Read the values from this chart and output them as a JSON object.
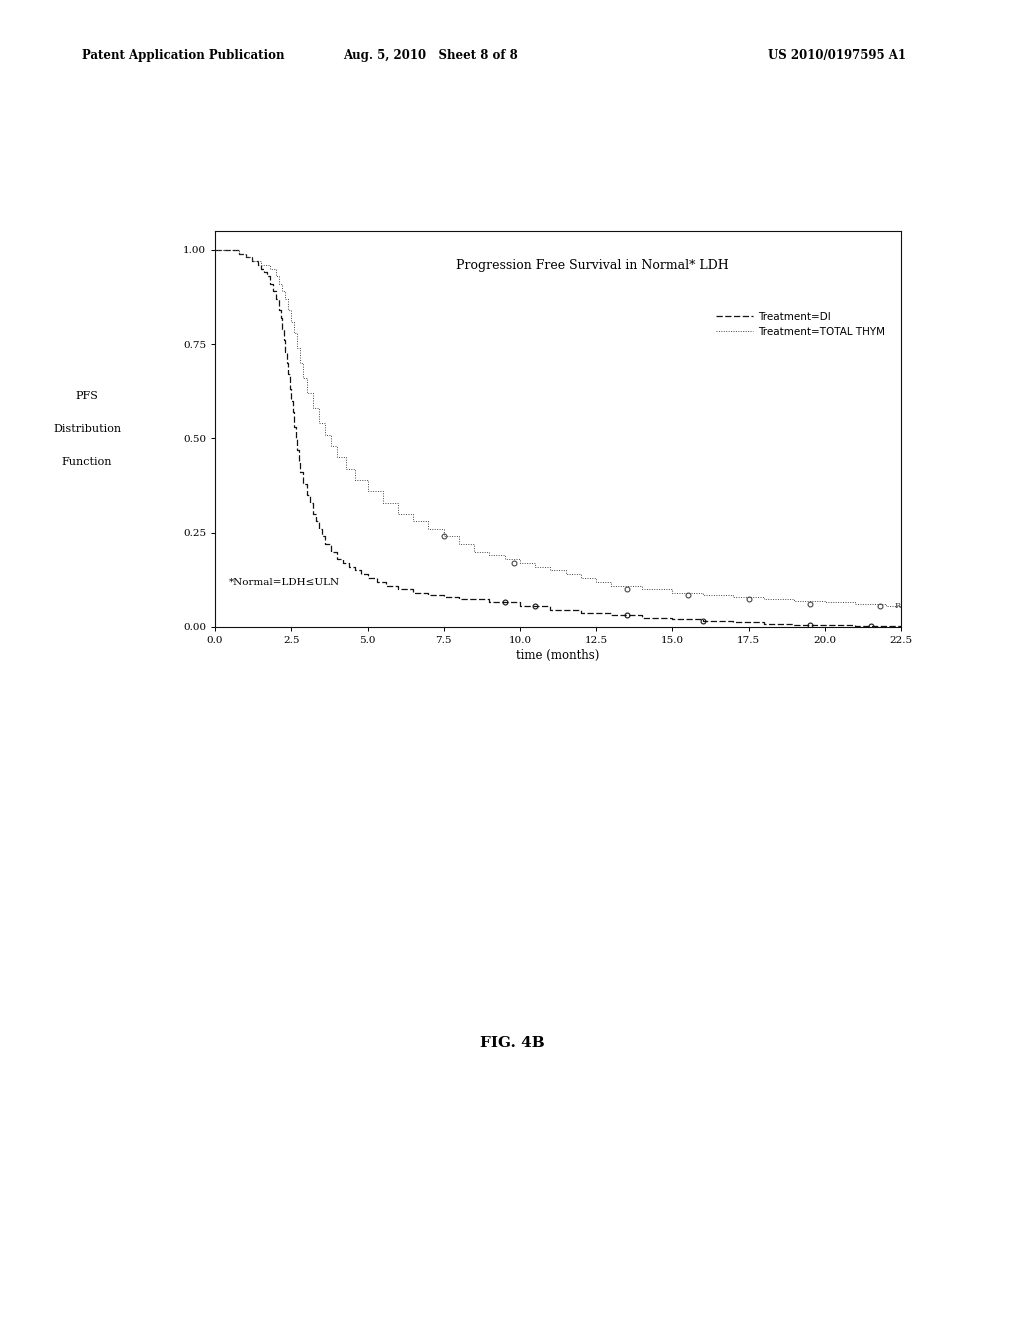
{
  "title": "Progression Free Survival in Normal* LDH",
  "xlabel": "time (months)",
  "footnote": "*Normal=LDH≤ULN",
  "fig_label": "FIG. 4B",
  "header_left": "Patent Application Publication",
  "header_mid": "Aug. 5, 2010   Sheet 8 of 8",
  "header_right": "US 2010/0197595 A1",
  "legend": [
    "Treatment=DI",
    "Treatment=TOTAL THYM"
  ],
  "xlim": [
    0.0,
    22.5
  ],
  "ylim": [
    0.0,
    1.05
  ],
  "xticks": [
    0.0,
    2.5,
    5.0,
    7.5,
    10.0,
    12.5,
    15.0,
    17.5,
    20.0,
    22.5
  ],
  "yticks": [
    0.0,
    0.25,
    0.5,
    0.75,
    1.0
  ],
  "background_color": "#ffffff",
  "t_di": [
    0.0,
    0.5,
    0.8,
    1.0,
    1.2,
    1.4,
    1.5,
    1.6,
    1.7,
    1.8,
    1.9,
    2.0,
    2.1,
    2.15,
    2.2,
    2.25,
    2.3,
    2.35,
    2.4,
    2.45,
    2.5,
    2.55,
    2.6,
    2.65,
    2.7,
    2.75,
    2.8,
    2.9,
    3.0,
    3.1,
    3.2,
    3.3,
    3.4,
    3.5,
    3.6,
    3.8,
    4.0,
    4.2,
    4.4,
    4.6,
    4.8,
    5.0,
    5.3,
    5.6,
    6.0,
    6.5,
    7.0,
    7.5,
    8.0,
    9.0,
    10.0,
    11.0,
    12.0,
    13.0,
    14.0,
    15.0,
    16.0,
    17.0,
    18.0,
    19.0,
    20.0,
    21.0,
    22.0,
    22.5
  ],
  "s_di": [
    1.0,
    1.0,
    0.99,
    0.98,
    0.97,
    0.96,
    0.95,
    0.94,
    0.93,
    0.91,
    0.89,
    0.87,
    0.84,
    0.82,
    0.79,
    0.76,
    0.73,
    0.7,
    0.67,
    0.63,
    0.6,
    0.57,
    0.53,
    0.5,
    0.47,
    0.44,
    0.41,
    0.38,
    0.35,
    0.33,
    0.3,
    0.28,
    0.26,
    0.24,
    0.22,
    0.2,
    0.18,
    0.17,
    0.16,
    0.15,
    0.14,
    0.13,
    0.12,
    0.11,
    0.1,
    0.09,
    0.085,
    0.08,
    0.075,
    0.065,
    0.055,
    0.045,
    0.038,
    0.032,
    0.025,
    0.02,
    0.015,
    0.012,
    0.008,
    0.005,
    0.004,
    0.003,
    0.002,
    0.002
  ],
  "t_thym": [
    0.0,
    0.5,
    0.8,
    1.0,
    1.2,
    1.5,
    1.8,
    2.0,
    2.1,
    2.2,
    2.3,
    2.4,
    2.5,
    2.6,
    2.7,
    2.8,
    2.9,
    3.0,
    3.2,
    3.4,
    3.6,
    3.8,
    4.0,
    4.3,
    4.6,
    5.0,
    5.5,
    6.0,
    6.5,
    7.0,
    7.5,
    8.0,
    8.5,
    9.0,
    9.5,
    10.0,
    10.5,
    11.0,
    11.5,
    12.0,
    12.5,
    13.0,
    14.0,
    15.0,
    16.0,
    17.0,
    18.0,
    19.0,
    20.0,
    21.0,
    22.0,
    22.5
  ],
  "s_thym": [
    1.0,
    1.0,
    0.99,
    0.98,
    0.97,
    0.96,
    0.95,
    0.93,
    0.91,
    0.89,
    0.87,
    0.84,
    0.81,
    0.78,
    0.74,
    0.7,
    0.66,
    0.62,
    0.58,
    0.54,
    0.51,
    0.48,
    0.45,
    0.42,
    0.39,
    0.36,
    0.33,
    0.3,
    0.28,
    0.26,
    0.24,
    0.22,
    0.2,
    0.19,
    0.18,
    0.17,
    0.16,
    0.15,
    0.14,
    0.13,
    0.12,
    0.11,
    0.1,
    0.09,
    0.085,
    0.08,
    0.075,
    0.07,
    0.065,
    0.06,
    0.055,
    0.055
  ],
  "censor_di_x": [
    9.5,
    10.5,
    13.5,
    16.0,
    19.5,
    21.5
  ],
  "censor_di_y": [
    0.065,
    0.055,
    0.032,
    0.015,
    0.004,
    0.002
  ],
  "censor_thym_x": [
    7.5,
    9.8,
    13.5,
    15.5,
    17.5,
    19.5,
    21.8
  ],
  "censor_thym_y": [
    0.24,
    0.17,
    0.1,
    0.085,
    0.075,
    0.06,
    0.055
  ]
}
